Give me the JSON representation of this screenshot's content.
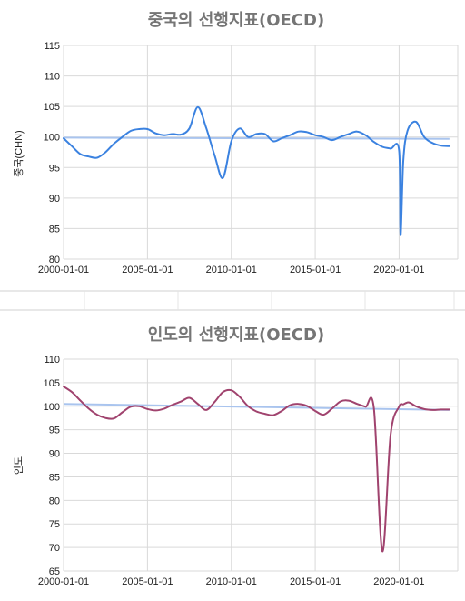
{
  "chart_data": [
    {
      "type": "line",
      "title": "중국의 선행지표(OECD)",
      "xlabel": "",
      "ylabel": "중국(CHN)",
      "ylim": [
        80,
        115
      ],
      "yticks": [
        "80",
        "85",
        "90",
        "95",
        "100",
        "105",
        "110",
        "115"
      ],
      "xticks": [
        "2000-01-01",
        "2005-01-01",
        "2010-01-01",
        "2015-01-01",
        "2020-01-01"
      ],
      "grid": true,
      "legend": "none",
      "colors": {
        "series": "#3b82e0",
        "trend": "#a9c4ee"
      },
      "series": [
        {
          "x": [
            "2000-01",
            "2000-07",
            "2001-01",
            "2001-07",
            "2002-01",
            "2002-07",
            "2003-01",
            "2003-07",
            "2004-01",
            "2004-07",
            "2005-01",
            "2005-07",
            "2006-01",
            "2006-07",
            "2007-01",
            "2007-07",
            "2008-01",
            "2008-07",
            "2009-01",
            "2009-07",
            "2010-01",
            "2010-07",
            "2011-01",
            "2011-07",
            "2012-01",
            "2012-07",
            "2013-01",
            "2013-07",
            "2014-01",
            "2014-07",
            "2015-01",
            "2015-07",
            "2016-01",
            "2016-07",
            "2017-01",
            "2017-07",
            "2018-01",
            "2018-07",
            "2019-01",
            "2019-07",
            "2020-01",
            "2020-02",
            "2020-04",
            "2020-07",
            "2021-01",
            "2021-07",
            "2022-01",
            "2022-07",
            "2023-01"
          ],
          "values": [
            99.8,
            98.5,
            97.2,
            96.8,
            96.6,
            97.5,
            98.9,
            100.0,
            101.0,
            101.3,
            101.3,
            100.6,
            100.3,
            100.5,
            100.4,
            101.4,
            104.9,
            101.5,
            97.0,
            93.3,
            99.3,
            101.4,
            100.0,
            100.5,
            100.5,
            99.3,
            99.8,
            100.3,
            100.9,
            100.8,
            100.3,
            100.0,
            99.5,
            100.0,
            100.5,
            100.9,
            100.3,
            99.2,
            98.4,
            98.1,
            97.8,
            83.9,
            96.0,
            101.0,
            102.5,
            100.0,
            99.0,
            98.6,
            98.5
          ]
        },
        {
          "x": [
            "2000-01",
            "2023-01"
          ],
          "values": [
            99.9,
            99.7
          ]
        }
      ]
    },
    {
      "type": "line",
      "title": "인도의 선행지표(OECD)",
      "xlabel": "",
      "ylabel": "인도",
      "ylim": [
        65,
        110
      ],
      "yticks": [
        "65",
        "70",
        "75",
        "80",
        "85",
        "90",
        "95",
        "100",
        "105",
        "110"
      ],
      "xticks": [
        "2000-01-01",
        "2005-01-01",
        "2010-01-01",
        "2015-01-01",
        "2020-01-01"
      ],
      "grid": true,
      "legend": "none",
      "colors": {
        "series": "#a0436e",
        "trend": "#a9c4ee"
      },
      "series": [
        {
          "x": [
            "2000-01",
            "2000-07",
            "2001-01",
            "2001-07",
            "2002-01",
            "2002-07",
            "2003-01",
            "2003-07",
            "2004-01",
            "2004-07",
            "2005-01",
            "2005-07",
            "2006-01",
            "2006-07",
            "2007-01",
            "2007-07",
            "2008-01",
            "2008-07",
            "2009-01",
            "2009-07",
            "2010-01",
            "2010-07",
            "2011-01",
            "2011-07",
            "2012-01",
            "2012-07",
            "2013-01",
            "2013-07",
            "2014-01",
            "2014-07",
            "2015-01",
            "2015-07",
            "2016-01",
            "2016-07",
            "2017-01",
            "2017-07",
            "2018-01",
            "2018-07",
            "2019-01",
            "2019-07",
            "2020-01",
            "2020-04",
            "2020-07",
            "2020-09",
            "2021-01",
            "2021-07",
            "2022-01",
            "2022-07",
            "2023-01"
          ],
          "values": [
            104.2,
            103.0,
            101.2,
            99.5,
            98.2,
            97.5,
            97.4,
            98.7,
            99.9,
            100.0,
            99.4,
            99.1,
            99.5,
            100.3,
            101.0,
            101.8,
            100.5,
            99.2,
            100.9,
            103.0,
            103.4,
            102.0,
            100.0,
            98.9,
            98.4,
            98.1,
            99.0,
            100.2,
            100.5,
            100.1,
            99.0,
            98.2,
            99.5,
            101.0,
            101.2,
            100.5,
            99.9,
            99.5,
            69.2,
            94.0,
            99.9,
            100.4,
            100.8,
            100.7,
            100.0,
            99.4,
            99.2,
            99.3,
            99.3
          ]
        },
        {
          "x": [
            "2000-01",
            "2023-01"
          ],
          "values": [
            100.5,
            99.2
          ]
        }
      ]
    }
  ]
}
